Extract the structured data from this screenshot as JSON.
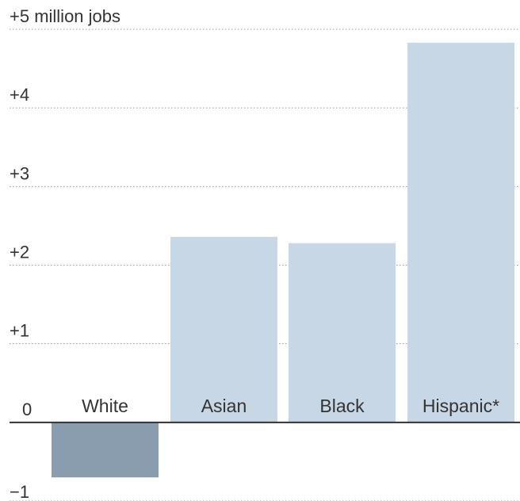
{
  "chart_data": {
    "type": "bar",
    "categories": [
      "White",
      "Asian",
      "Black",
      "Hispanic*"
    ],
    "values": [
      -0.7,
      2.36,
      2.28,
      4.83
    ],
    "ylim": [
      -1,
      5
    ],
    "yticks": [
      {
        "value": 5,
        "label": "+5 million jobs"
      },
      {
        "value": 4,
        "label": "+4"
      },
      {
        "value": 3,
        "label": "+3"
      },
      {
        "value": 2,
        "label": "+2"
      },
      {
        "value": 1,
        "label": "+1"
      },
      {
        "value": 0,
        "label": "0"
      },
      {
        "value": -1,
        "label": "−1"
      }
    ],
    "grid": true,
    "colors": {
      "positive": "#c8d7e5",
      "negative": "#8a9daf"
    }
  }
}
